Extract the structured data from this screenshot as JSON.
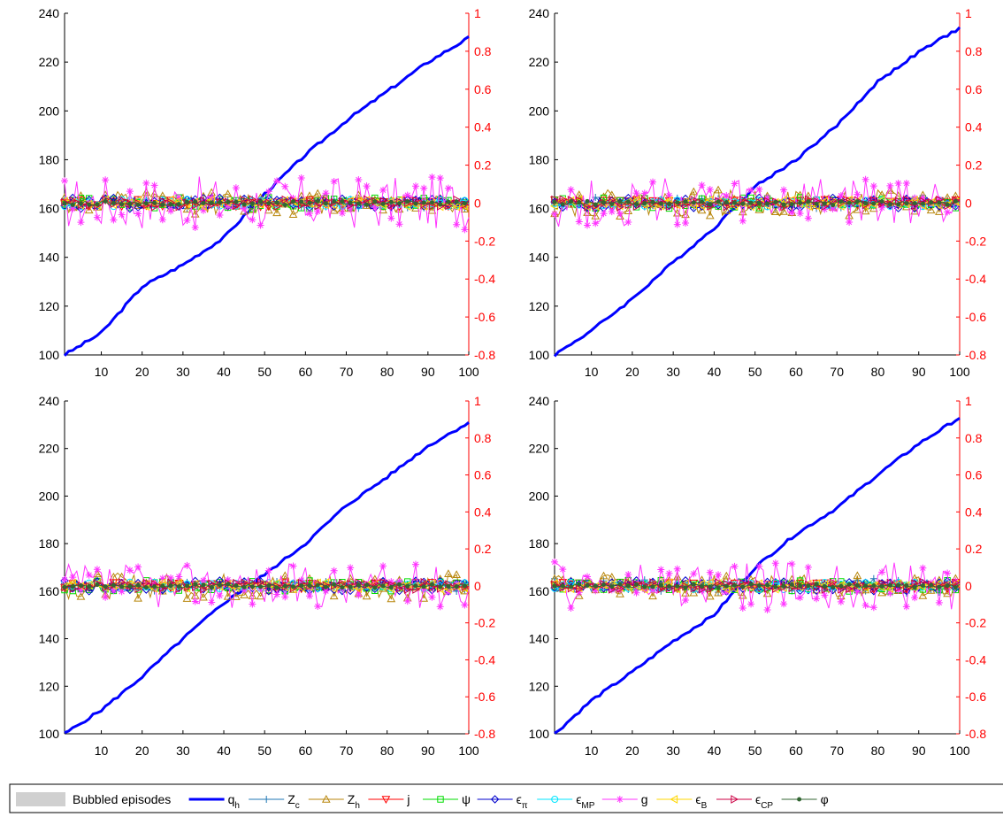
{
  "chart_data": [
    {
      "type": "line",
      "x": {
        "range": [
          1,
          100
        ],
        "ticks": [
          10,
          20,
          30,
          40,
          50,
          60,
          70,
          80,
          90,
          100
        ]
      },
      "y_left": {
        "range": [
          100,
          240
        ],
        "ticks": [
          100,
          120,
          140,
          160,
          180,
          200,
          220,
          240
        ],
        "color": "#000000"
      },
      "y_right": {
        "range": [
          -0.8,
          1
        ],
        "ticks": [
          "-0.8",
          "-0.6",
          "-0.4",
          "-0.2",
          "0",
          "0.2",
          "0.4",
          "0.6",
          "0.8",
          "1"
        ],
        "color": "#ff0000"
      },
      "series": [
        {
          "name": "q_h",
          "axis": "left",
          "start": 100,
          "end": 230,
          "x": [
            1,
            10,
            20,
            30,
            40,
            50,
            60,
            70,
            80,
            90,
            100
          ],
          "values": [
            100,
            109,
            128,
            137,
            148,
            166,
            182,
            196,
            208,
            220,
            230
          ]
        },
        {
          "name": "Z_c",
          "axis": "right",
          "amplitude": 0.03,
          "seed": 11
        },
        {
          "name": "Z_h",
          "axis": "right",
          "amplitude": 0.06,
          "seed": 12
        },
        {
          "name": "j",
          "axis": "right",
          "amplitude": 0.02,
          "seed": 13
        },
        {
          "name": "psi",
          "axis": "right",
          "amplitude": 0.03,
          "seed": 14
        },
        {
          "name": "eps_pi",
          "axis": "right",
          "amplitude": 0.03,
          "seed": 15
        },
        {
          "name": "eps_MP",
          "axis": "right",
          "amplitude": 0.02,
          "seed": 16
        },
        {
          "name": "g",
          "axis": "right",
          "amplitude": 0.14,
          "seed": 17
        },
        {
          "name": "eps_B",
          "axis": "right",
          "amplitude": 0.02,
          "seed": 18
        },
        {
          "name": "eps_CP",
          "axis": "right",
          "amplitude": 0.02,
          "seed": 19
        },
        {
          "name": "phi",
          "axis": "right",
          "amplitude": 0.01,
          "seed": 20
        }
      ]
    },
    {
      "type": "line",
      "x": {
        "range": [
          1,
          100
        ],
        "ticks": [
          10,
          20,
          30,
          40,
          50,
          60,
          70,
          80,
          90,
          100
        ]
      },
      "y_left": {
        "range": [
          100,
          240
        ],
        "ticks": [
          100,
          120,
          140,
          160,
          180,
          200,
          220,
          240
        ],
        "color": "#000000"
      },
      "y_right": {
        "range": [
          -0.8,
          1
        ],
        "ticks": [
          "-0.8",
          "-0.6",
          "-0.4",
          "-0.2",
          "0",
          "0.2",
          "0.4",
          "0.6",
          "0.8",
          "1"
        ],
        "color": "#ff0000"
      },
      "series": [
        {
          "name": "q_h",
          "axis": "left",
          "start": 100,
          "end": 234,
          "x": [
            1,
            10,
            20,
            30,
            40,
            50,
            60,
            70,
            80,
            90,
            100
          ],
          "values": [
            100,
            110,
            123,
            138,
            152,
            169,
            180,
            194,
            212,
            224,
            234
          ]
        },
        {
          "name": "Z_c",
          "axis": "right",
          "amplitude": 0.03,
          "seed": 21
        },
        {
          "name": "Z_h",
          "axis": "right",
          "amplitude": 0.07,
          "seed": 22
        },
        {
          "name": "j",
          "axis": "right",
          "amplitude": 0.02,
          "seed": 23
        },
        {
          "name": "psi",
          "axis": "right",
          "amplitude": 0.03,
          "seed": 24
        },
        {
          "name": "eps_pi",
          "axis": "right",
          "amplitude": 0.03,
          "seed": 25
        },
        {
          "name": "eps_MP",
          "axis": "right",
          "amplitude": 0.02,
          "seed": 26
        },
        {
          "name": "g",
          "axis": "right",
          "amplitude": 0.13,
          "seed": 27
        },
        {
          "name": "eps_B",
          "axis": "right",
          "amplitude": 0.02,
          "seed": 28
        },
        {
          "name": "eps_CP",
          "axis": "right",
          "amplitude": 0.02,
          "seed": 29
        },
        {
          "name": "phi",
          "axis": "right",
          "amplitude": 0.01,
          "seed": 30
        }
      ]
    },
    {
      "type": "line",
      "x": {
        "range": [
          1,
          100
        ],
        "ticks": [
          10,
          20,
          30,
          40,
          50,
          60,
          70,
          80,
          90,
          100
        ]
      },
      "y_left": {
        "range": [
          100,
          240
        ],
        "ticks": [
          100,
          120,
          140,
          160,
          180,
          200,
          220,
          240
        ],
        "color": "#000000"
      },
      "y_right": {
        "range": [
          -0.8,
          1
        ],
        "ticks": [
          "-0.8",
          "-0.6",
          "-0.4",
          "-0.2",
          "0",
          "0.2",
          "0.4",
          "0.6",
          "0.8",
          "1"
        ],
        "color": "#ff0000"
      },
      "series": [
        {
          "name": "q_h",
          "axis": "left",
          "start": 100,
          "end": 231,
          "x": [
            1,
            10,
            20,
            30,
            40,
            50,
            60,
            70,
            80,
            90,
            100
          ],
          "values": [
            100,
            110,
            124,
            140,
            155,
            167,
            180,
            196,
            208,
            221,
            231
          ]
        },
        {
          "name": "Z_c",
          "axis": "right",
          "amplitude": 0.03,
          "seed": 31
        },
        {
          "name": "Z_h",
          "axis": "right",
          "amplitude": 0.07,
          "seed": 32
        },
        {
          "name": "j",
          "axis": "right",
          "amplitude": 0.02,
          "seed": 33
        },
        {
          "name": "psi",
          "axis": "right",
          "amplitude": 0.03,
          "seed": 34
        },
        {
          "name": "eps_pi",
          "axis": "right",
          "amplitude": 0.03,
          "seed": 35
        },
        {
          "name": "eps_MP",
          "axis": "right",
          "amplitude": 0.02,
          "seed": 36
        },
        {
          "name": "g",
          "axis": "right",
          "amplitude": 0.12,
          "seed": 37
        },
        {
          "name": "eps_B",
          "axis": "right",
          "amplitude": 0.02,
          "seed": 38
        },
        {
          "name": "eps_CP",
          "axis": "right",
          "amplitude": 0.02,
          "seed": 39
        },
        {
          "name": "phi",
          "axis": "right",
          "amplitude": 0.01,
          "seed": 40
        }
      ]
    },
    {
      "type": "line",
      "x": {
        "range": [
          1,
          100
        ],
        "ticks": [
          10,
          20,
          30,
          40,
          50,
          60,
          70,
          80,
          90,
          100
        ]
      },
      "y_left": {
        "range": [
          100,
          240
        ],
        "ticks": [
          100,
          120,
          140,
          160,
          180,
          200,
          220,
          240
        ],
        "color": "#000000"
      },
      "y_right": {
        "range": [
          -0.8,
          1
        ],
        "ticks": [
          "-0.8",
          "-0.6",
          "-0.4",
          "-0.2",
          "0",
          "0.2",
          "0.4",
          "0.6",
          "0.8",
          "1"
        ],
        "color": "#ff0000"
      },
      "series": [
        {
          "name": "q_h",
          "axis": "left",
          "start": 100,
          "end": 233,
          "x": [
            1,
            10,
            20,
            30,
            40,
            50,
            60,
            70,
            80,
            90,
            100
          ],
          "values": [
            100,
            114,
            126,
            139,
            150,
            170,
            184,
            195,
            209,
            222,
            233
          ]
        },
        {
          "name": "Z_c",
          "axis": "right",
          "amplitude": 0.04,
          "seed": 41
        },
        {
          "name": "Z_h",
          "axis": "right",
          "amplitude": 0.06,
          "seed": 42
        },
        {
          "name": "j",
          "axis": "right",
          "amplitude": 0.02,
          "seed": 43
        },
        {
          "name": "psi",
          "axis": "right",
          "amplitude": 0.03,
          "seed": 44
        },
        {
          "name": "eps_pi",
          "axis": "right",
          "amplitude": 0.03,
          "seed": 45
        },
        {
          "name": "eps_MP",
          "axis": "right",
          "amplitude": 0.02,
          "seed": 46
        },
        {
          "name": "g",
          "axis": "right",
          "amplitude": 0.13,
          "seed": 47
        },
        {
          "name": "eps_B",
          "axis": "right",
          "amplitude": 0.02,
          "seed": 48
        },
        {
          "name": "eps_CP",
          "axis": "right",
          "amplitude": 0.02,
          "seed": 49
        },
        {
          "name": "phi",
          "axis": "right",
          "amplitude": 0.01,
          "seed": 50
        }
      ]
    }
  ],
  "legend": [
    {
      "key": "bubbled",
      "label": "Bubbled episodes",
      "sub": "",
      "color": "#d0d0d0",
      "marker": "patch"
    },
    {
      "key": "q_h",
      "label": "q",
      "sub": "h",
      "color": "#0000ff",
      "marker": "none"
    },
    {
      "key": "Z_c",
      "label": "Z",
      "sub": "c",
      "color": "#1f77b4",
      "marker": "plus"
    },
    {
      "key": "Z_h",
      "label": "Z",
      "sub": "h",
      "color": "#b8860b",
      "marker": "triangle-up"
    },
    {
      "key": "j",
      "label": "j",
      "sub": "",
      "color": "#ff0000",
      "marker": "triangle-down"
    },
    {
      "key": "psi",
      "label": "ψ",
      "sub": "",
      "color": "#00dd00",
      "marker": "square"
    },
    {
      "key": "eps_pi",
      "label": "ϵ",
      "sub": "π",
      "color": "#0000cc",
      "marker": "diamond"
    },
    {
      "key": "eps_MP",
      "label": "ϵ",
      "sub": "MP",
      "color": "#00e5ff",
      "marker": "circle"
    },
    {
      "key": "g",
      "label": "g",
      "sub": "",
      "color": "#ff33ff",
      "marker": "asterisk"
    },
    {
      "key": "eps_B",
      "label": "ϵ",
      "sub": "B",
      "color": "#ffd700",
      "marker": "triangle-left"
    },
    {
      "key": "eps_CP",
      "label": "ϵ",
      "sub": "CP",
      "color": "#cc0044",
      "marker": "triangle-right"
    },
    {
      "key": "phi",
      "label": "φ",
      "sub": "",
      "color": "#336633",
      "marker": "dot"
    }
  ]
}
